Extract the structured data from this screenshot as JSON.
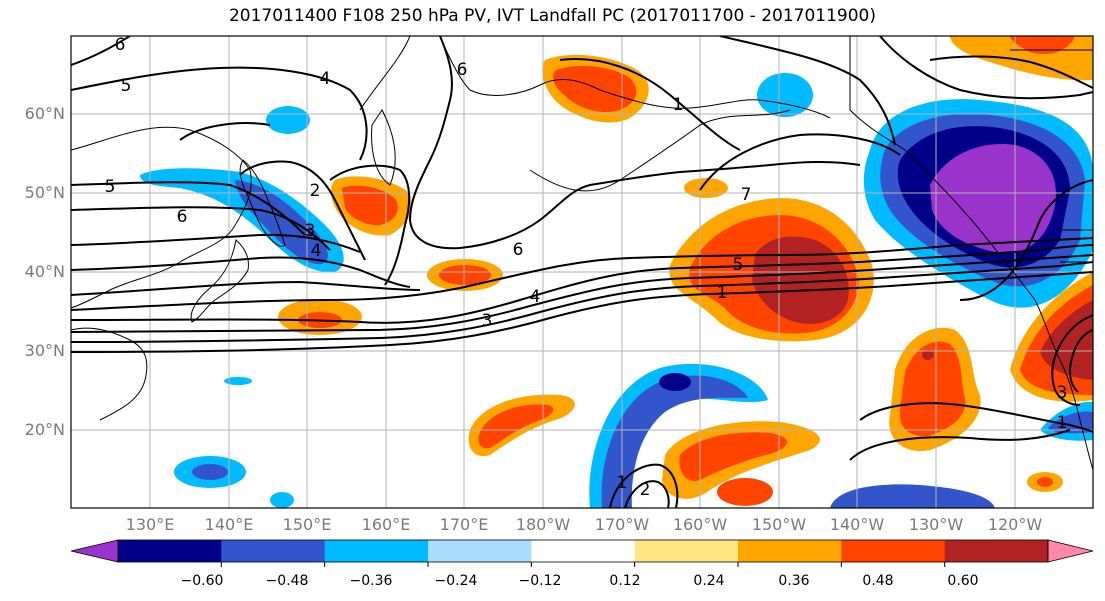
{
  "title": "2017011400 F108 250 hPa PV, IVT Landfall PC (2017011700 - 2017011900)",
  "lat_labels": [
    "60°N",
    "50°N",
    "40°N",
    "30°N",
    "20°N"
  ],
  "lon_labels": [
    "130°E",
    "140°E",
    "150°E",
    "160°E",
    "170°E",
    "180°W",
    "170°W",
    "160°W",
    "150°W",
    "140°W",
    "130°W",
    "120°W"
  ],
  "contour_labels": [
    "6",
    "5",
    "4",
    "5",
    "2",
    "6",
    "3",
    "4",
    "6",
    "6",
    "7",
    "5",
    "1",
    "4",
    "3",
    "1",
    "2",
    "1",
    "1",
    "3"
  ],
  "colorbar": {
    "ticks": [
      "−0.60",
      "−0.48",
      "−0.36",
      "−0.24",
      "−0.12",
      "0.12",
      "0.24",
      "0.36",
      "0.48",
      "0.60"
    ],
    "colors": [
      "#9933cc",
      "#000088",
      "#3355cc",
      "#00bbff",
      "#aaddff",
      "#ffffff",
      "#ffe680",
      "#ffa500",
      "#ff4400",
      "#b22222",
      "#ff88aa"
    ]
  }
}
